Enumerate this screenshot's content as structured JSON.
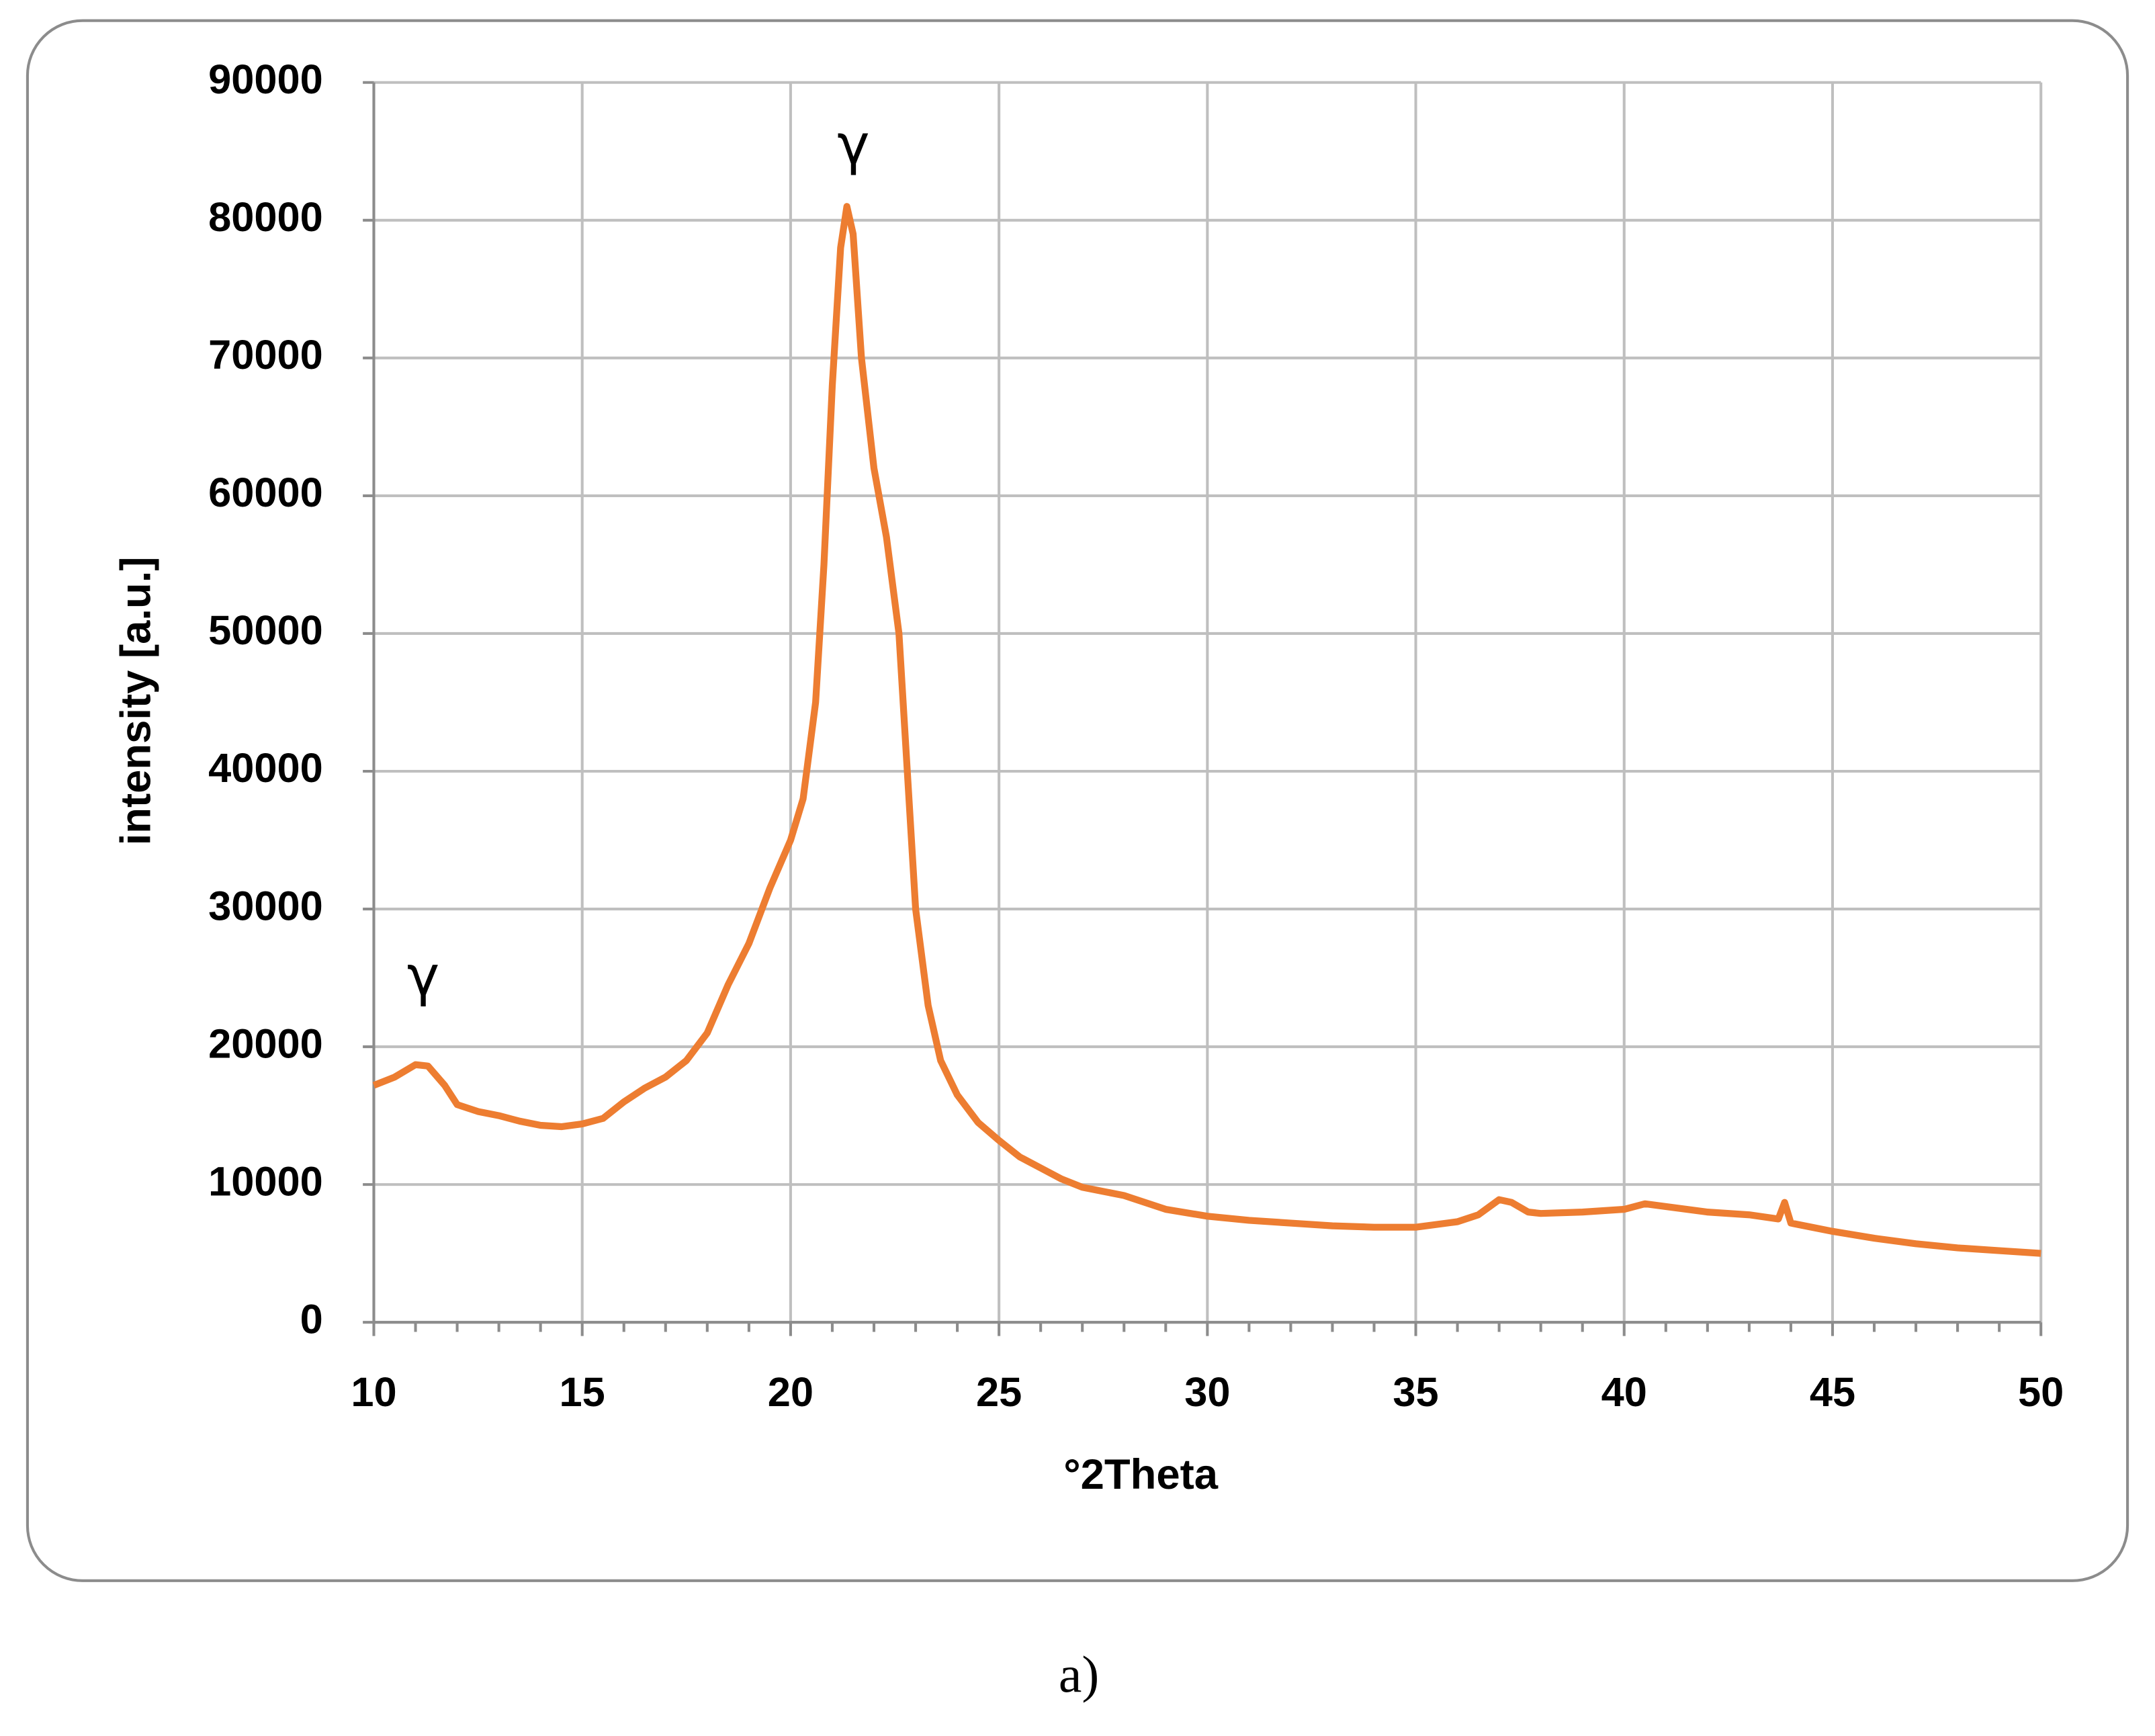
{
  "chart_data": {
    "type": "line",
    "xlabel": "°2Theta",
    "ylabel": "intensity [a.u.]",
    "annotations": [
      "γ",
      "γ"
    ],
    "caption": "a)",
    "x": [
      10,
      10.5,
      11,
      11.3,
      11.7,
      12,
      12.5,
      13,
      13.5,
      14,
      14.5,
      15,
      15.5,
      16,
      16.5,
      17,
      17.5,
      18,
      18.5,
      19,
      19.5,
      20,
      20.3,
      20.6,
      20.8,
      21,
      21.2,
      21.35,
      21.5,
      21.7,
      22,
      22.3,
      22.6,
      22.8,
      23,
      23.3,
      23.6,
      24,
      24.5,
      25,
      25.5,
      26,
      26.5,
      27,
      28,
      29,
      30,
      31,
      32,
      33,
      34,
      35,
      36,
      36.5,
      37,
      37.3,
      37.7,
      38,
      39,
      40,
      40.5,
      41,
      42,
      43,
      43.7,
      43.85,
      44,
      44.5,
      45,
      46,
      47,
      48,
      49,
      50
    ],
    "series": [
      {
        "name": "intensity",
        "color": "#ed7d31",
        "values": [
          17200,
          17800,
          18700,
          18600,
          17200,
          15800,
          15300,
          15000,
          14600,
          14300,
          14200,
          14400,
          14800,
          16000,
          17000,
          17800,
          19000,
          21000,
          24500,
          27500,
          31500,
          35000,
          38000,
          45000,
          55000,
          68000,
          78000,
          81000,
          79000,
          70000,
          62000,
          57000,
          50000,
          40000,
          30000,
          23000,
          19000,
          16500,
          14500,
          13200,
          12000,
          11200,
          10400,
          9800,
          9200,
          8200,
          7700,
          7400,
          7200,
          7000,
          6900,
          6900,
          7300,
          7800,
          8900,
          8700,
          8000,
          7900,
          8000,
          8200,
          8600,
          8400,
          8000,
          7800,
          7500,
          8700,
          7200,
          6900,
          6600,
          6100,
          5700,
          5400,
          5200,
          5000
        ]
      }
    ],
    "xlim": [
      10,
      50
    ],
    "xticks": [
      10,
      15,
      20,
      25,
      30,
      35,
      40,
      45,
      50
    ],
    "ylim": [
      0,
      90000
    ],
    "yticks": [
      0,
      10000,
      20000,
      30000,
      40000,
      50000,
      60000,
      70000,
      80000,
      90000
    ],
    "grid": true
  }
}
